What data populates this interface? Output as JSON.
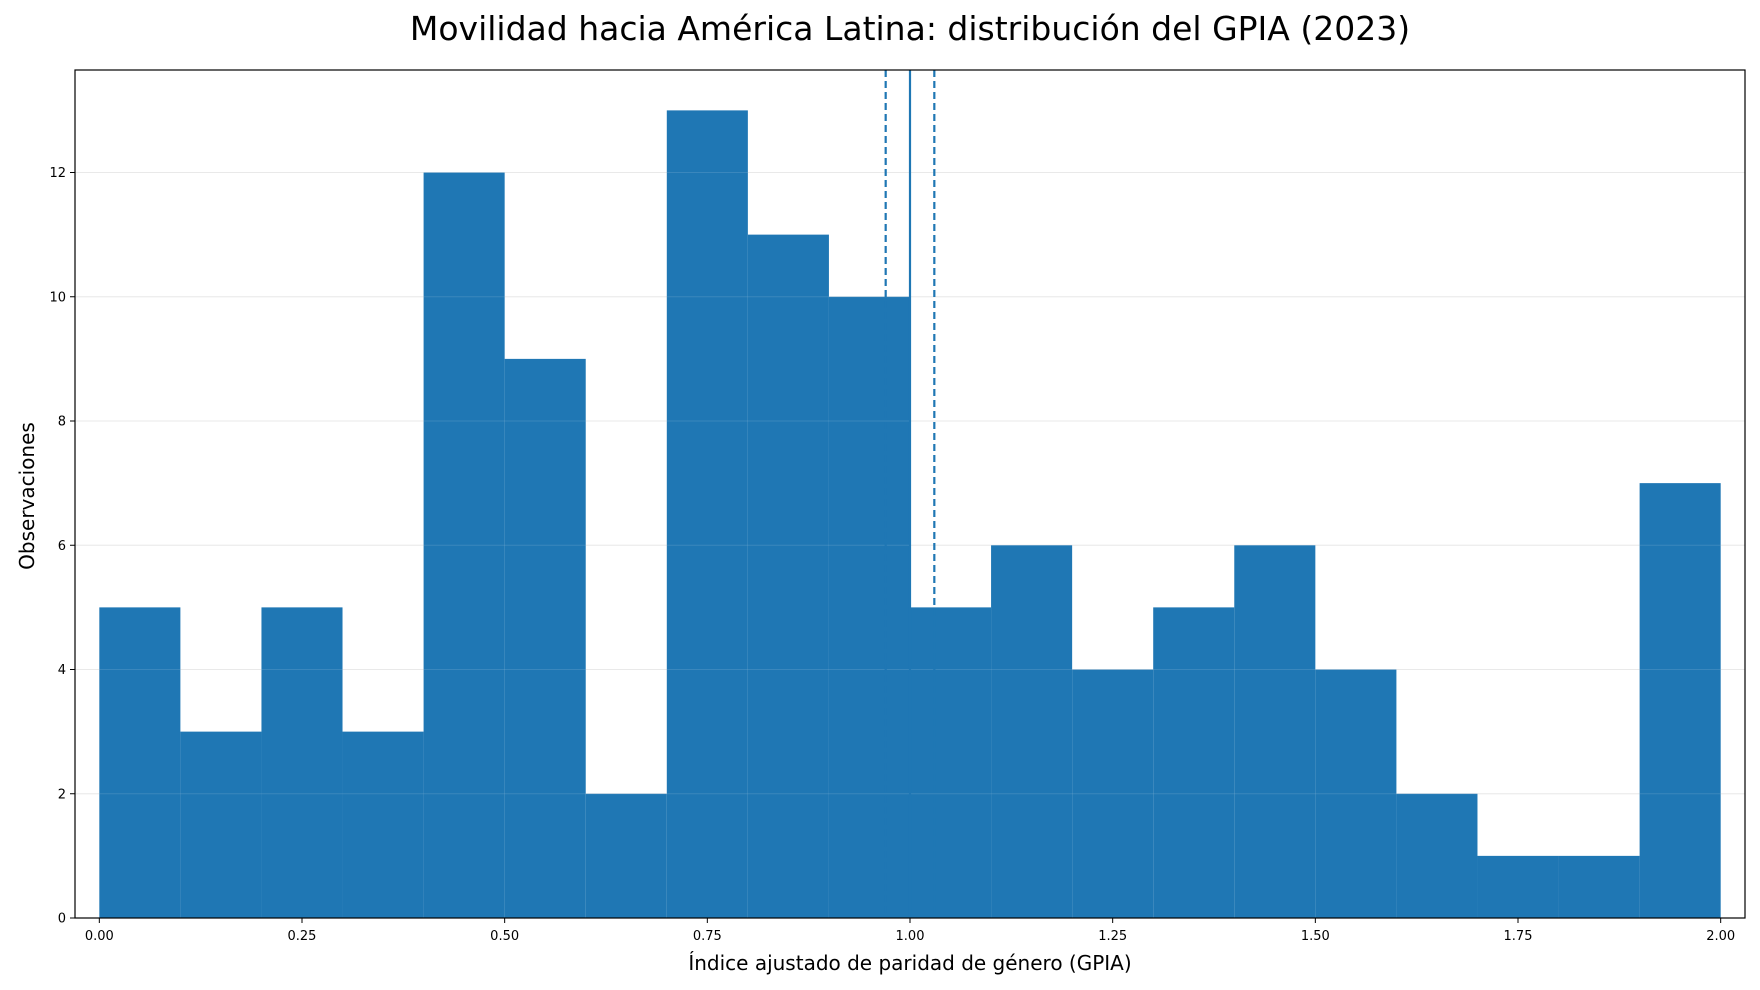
{
  "chart_data": {
    "type": "bar",
    "title": "Movilidad hacia América Latina: distribución del GPIA (2023)",
    "xlabel": "Índice ajustado de paridad de género (GPIA)",
    "ylabel": "Observaciones",
    "bin_edges": [
      0.0,
      0.1,
      0.2,
      0.3,
      0.4,
      0.5,
      0.6,
      0.7,
      0.8,
      0.9,
      1.0,
      1.1,
      1.2,
      1.3,
      1.4,
      1.5,
      1.6,
      1.7,
      1.8,
      1.9,
      2.0
    ],
    "values": [
      5,
      3,
      5,
      3,
      12,
      9,
      2,
      13,
      11,
      10,
      5,
      6,
      4,
      5,
      6,
      4,
      2,
      1,
      1,
      7
    ],
    "xlim": [
      -0.03,
      2.03
    ],
    "ylim": [
      0,
      13.65
    ],
    "x_ticks": [
      0.0,
      0.25,
      0.5,
      0.75,
      1.0,
      1.25,
      1.5,
      1.75,
      2.0
    ],
    "x_tick_labels": [
      "0.00",
      "0.25",
      "0.50",
      "0.75",
      "1.00",
      "1.25",
      "1.50",
      "1.75",
      "2.00"
    ],
    "y_ticks": [
      0,
      2,
      4,
      6,
      8,
      10,
      12
    ],
    "y_tick_labels": [
      "0",
      "2",
      "4",
      "6",
      "8",
      "10",
      "12"
    ],
    "reference_lines": [
      {
        "x": 1.0,
        "style": "solid"
      },
      {
        "x": 0.97,
        "style": "dashed"
      },
      {
        "x": 1.03,
        "style": "dashed"
      }
    ],
    "grid": "horizontal",
    "colors": {
      "bar": "#1f77b4",
      "reference": "#1f77b4",
      "grid": "#e6e6e6",
      "axis": "#000000"
    }
  }
}
